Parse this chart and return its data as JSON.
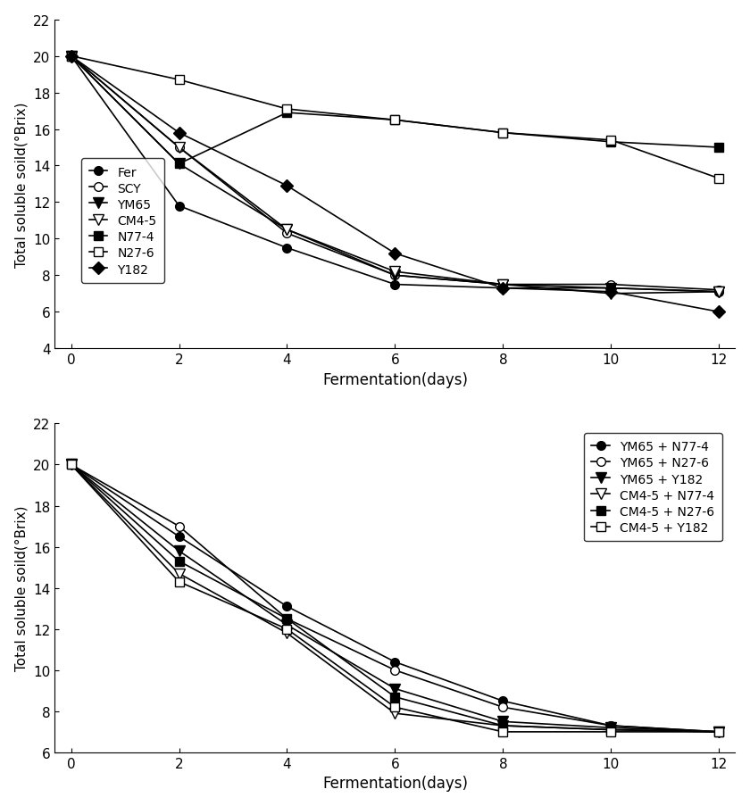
{
  "x": [
    0,
    2,
    4,
    6,
    8,
    10,
    12
  ],
  "plot1": {
    "Fer": [
      20,
      11.8,
      9.5,
      7.5,
      7.3,
      7.3,
      7.1
    ],
    "SCY": [
      20,
      15.0,
      10.3,
      8.0,
      7.5,
      7.5,
      7.2
    ],
    "YM65": [
      20,
      14.1,
      10.5,
      8.0,
      7.5,
      7.3,
      7.1
    ],
    "CM4-5": [
      20,
      15.0,
      10.5,
      8.2,
      7.5,
      7.0,
      7.1
    ],
    "N77-4": [
      20,
      14.1,
      16.9,
      16.5,
      15.8,
      15.3,
      15.0
    ],
    "N27-6": [
      20,
      18.7,
      17.1,
      16.5,
      15.8,
      15.4,
      13.3
    ],
    "Y182": [
      20,
      15.8,
      12.9,
      9.2,
      7.3,
      7.1,
      6.0
    ]
  },
  "plot2": {
    "YM65 + N77-4": [
      20,
      16.5,
      13.1,
      10.4,
      8.5,
      7.3,
      7.0
    ],
    "YM65 + N27-6": [
      20,
      17.0,
      12.5,
      10.0,
      8.2,
      7.3,
      7.0
    ],
    "YM65 + Y182": [
      20,
      15.8,
      12.2,
      9.1,
      7.5,
      7.2,
      7.0
    ],
    "CM4-5 + N77-4": [
      20,
      14.7,
      11.8,
      7.9,
      7.3,
      7.1,
      7.0
    ],
    "CM4-5 + N27-6": [
      20,
      15.3,
      12.5,
      8.7,
      7.3,
      7.1,
      7.0
    ],
    "CM4-5 + Y182": [
      20,
      14.3,
      12.0,
      8.2,
      7.0,
      7.0,
      7.0
    ]
  },
  "ylabel": "Total soluble soild(°Brix)",
  "xlabel": "Fermentation(days)",
  "plot1_ylim": [
    4,
    22
  ],
  "plot2_ylim": [
    6,
    22
  ],
  "plot1_yticks": [
    4,
    6,
    8,
    10,
    12,
    14,
    16,
    18,
    20,
    22
  ],
  "plot2_yticks": [
    6,
    8,
    10,
    12,
    14,
    16,
    18,
    20,
    22
  ],
  "xticks": [
    0,
    2,
    4,
    6,
    8,
    10,
    12
  ],
  "background_color": "#ffffff"
}
